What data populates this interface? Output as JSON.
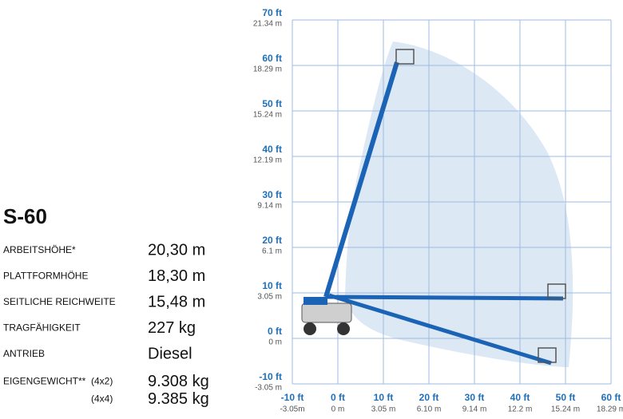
{
  "model": "S-60",
  "specs": [
    {
      "label": "ARBEITSHÖHE*",
      "value": "20,30 m"
    },
    {
      "label": "PLATTFORMHÖHE",
      "value": "18,30 m"
    },
    {
      "label": "SEITLICHE REICHWEITE",
      "value": "15,48 m"
    },
    {
      "label": "TRAGFÄHIGKEIT",
      "value": "227 kg"
    },
    {
      "label": "ANTRIEB",
      "value": "Diesel"
    }
  ],
  "weight": {
    "label": "EIGENGEWICHT**",
    "variants": [
      {
        "drive": "(4x2)",
        "value": "9.308 kg"
      },
      {
        "drive": "(4x4)",
        "value": "9.385 kg"
      }
    ]
  },
  "diagram": {
    "y_ticks": [
      {
        "ft": "70 ft",
        "m": "21.34 m"
      },
      {
        "ft": "60 ft",
        "m": "18.29 m"
      },
      {
        "ft": "50 ft",
        "m": "15.24 m"
      },
      {
        "ft": "40 ft",
        "m": "12.19 m"
      },
      {
        "ft": "30 ft",
        "m": "9.14 m"
      },
      {
        "ft": "20 ft",
        "m": "6.1 m"
      },
      {
        "ft": "10 ft",
        "m": "3.05 m"
      },
      {
        "ft": "0 ft",
        "m": "0 m"
      },
      {
        "ft": "-10 ft",
        "m": "-3.05 m"
      }
    ],
    "x_ticks": [
      {
        "ft": "-10 ft",
        "m": "-3.05m"
      },
      {
        "ft": "0 ft",
        "m": "0 m"
      },
      {
        "ft": "10 ft",
        "m": "3.05 m"
      },
      {
        "ft": "20 ft",
        "m": "6.10 m"
      },
      {
        "ft": "30 ft",
        "m": "9.14 m"
      },
      {
        "ft": "40 ft",
        "m": "12.2 m"
      },
      {
        "ft": "50 ft",
        "m": "15.24 m"
      },
      {
        "ft": "60 ft",
        "m": "18.29 m"
      }
    ]
  }
}
